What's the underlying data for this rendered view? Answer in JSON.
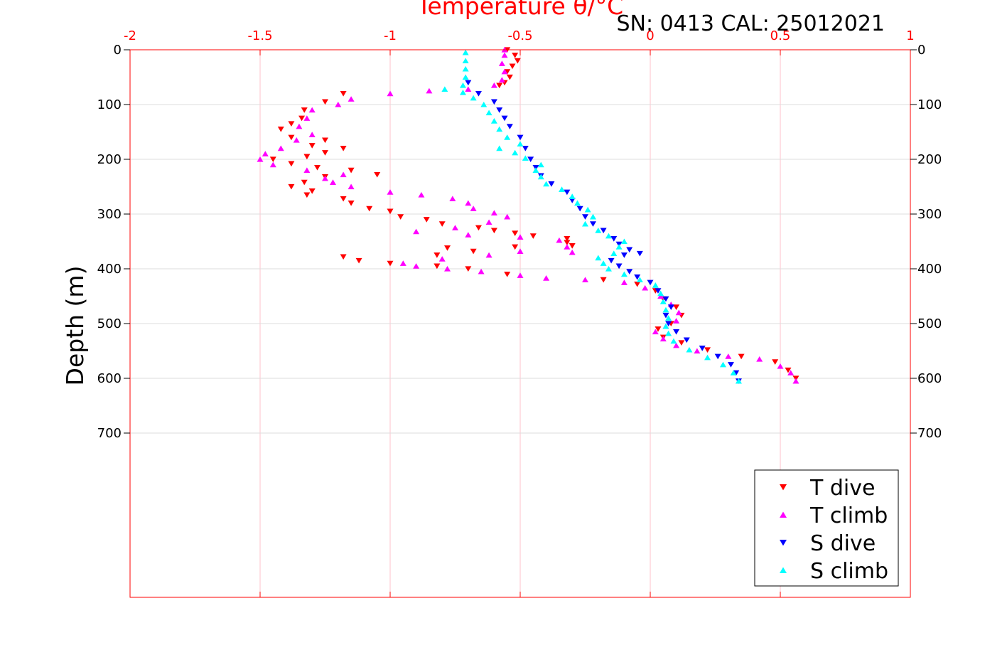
{
  "chart_data": {
    "type": "scatter",
    "title": "SN: 0413  CAL: 25012021",
    "xlabel": "Temperature θ/°C",
    "ylabel": "Depth (m)",
    "xlim": [
      -2,
      1
    ],
    "ylim": [
      0,
      1000
    ],
    "y_reversed": true,
    "xticks": [
      "-2",
      "-1.5",
      "-1",
      "-0.5",
      "0",
      "0.5",
      "1"
    ],
    "yticks": [
      "0",
      "100",
      "200",
      "300",
      "400",
      "500",
      "600",
      "700"
    ],
    "x_axis_position": "top",
    "y_axis_ticks_both_sides": true,
    "grid": true,
    "legend_position": "bottom-right",
    "colors": {
      "x_axis": "#ff0000",
      "grid_x": "#ffc0cb",
      "grid_y": "#dddddd"
    },
    "series": [
      {
        "name": "T dive",
        "marker": "triangle-down",
        "color": "#ff0000",
        "points": [
          [
            -0.55,
            0
          ],
          [
            -0.52,
            10
          ],
          [
            -0.51,
            20
          ],
          [
            -0.53,
            30
          ],
          [
            -0.55,
            40
          ],
          [
            -0.54,
            50
          ],
          [
            -0.56,
            60
          ],
          [
            -0.58,
            65
          ],
          [
            -1.18,
            80
          ],
          [
            -1.25,
            95
          ],
          [
            -1.33,
            110
          ],
          [
            -1.34,
            125
          ],
          [
            -1.38,
            135
          ],
          [
            -1.42,
            145
          ],
          [
            -1.38,
            160
          ],
          [
            -1.25,
            165
          ],
          [
            -1.3,
            175
          ],
          [
            -1.18,
            180
          ],
          [
            -1.25,
            188
          ],
          [
            -1.32,
            195
          ],
          [
            -1.45,
            200
          ],
          [
            -1.38,
            208
          ],
          [
            -1.28,
            215
          ],
          [
            -1.15,
            220
          ],
          [
            -1.05,
            228
          ],
          [
            -1.25,
            232
          ],
          [
            -1.33,
            242
          ],
          [
            -1.38,
            250
          ],
          [
            -1.3,
            258
          ],
          [
            -1.32,
            265
          ],
          [
            -1.18,
            272
          ],
          [
            -1.15,
            280
          ],
          [
            -1.08,
            290
          ],
          [
            -1.0,
            295
          ],
          [
            -0.96,
            305
          ],
          [
            -0.86,
            310
          ],
          [
            -0.8,
            318
          ],
          [
            -0.66,
            325
          ],
          [
            -0.6,
            330
          ],
          [
            -0.52,
            335
          ],
          [
            -0.45,
            340
          ],
          [
            -0.32,
            345
          ],
          [
            -0.32,
            352
          ],
          [
            -0.3,
            358
          ],
          [
            -0.52,
            360
          ],
          [
            -0.78,
            362
          ],
          [
            -0.68,
            368
          ],
          [
            -0.82,
            375
          ],
          [
            -1.18,
            378
          ],
          [
            -1.12,
            385
          ],
          [
            -1.0,
            390
          ],
          [
            -0.82,
            395
          ],
          [
            -0.7,
            400
          ],
          [
            -0.55,
            410
          ],
          [
            -0.18,
            420
          ],
          [
            -0.05,
            428
          ],
          [
            0.02,
            440
          ],
          [
            0.05,
            455
          ],
          [
            0.1,
            470
          ],
          [
            0.12,
            485
          ],
          [
            0.08,
            500
          ],
          [
            0.03,
            510
          ],
          [
            0.05,
            525
          ],
          [
            0.12,
            535
          ],
          [
            0.22,
            548
          ],
          [
            0.35,
            560
          ],
          [
            0.48,
            570
          ],
          [
            0.53,
            585
          ],
          [
            0.56,
            600
          ]
        ]
      },
      {
        "name": "T climb",
        "marker": "triangle-up",
        "color": "#ff00ff",
        "points": [
          [
            0.56,
            605
          ],
          [
            0.54,
            590
          ],
          [
            0.5,
            578
          ],
          [
            0.42,
            565
          ],
          [
            0.3,
            560
          ],
          [
            0.18,
            550
          ],
          [
            0.1,
            540
          ],
          [
            0.05,
            528
          ],
          [
            0.02,
            515
          ],
          [
            0.06,
            505
          ],
          [
            0.1,
            495
          ],
          [
            0.11,
            480
          ],
          [
            0.08,
            465
          ],
          [
            0.04,
            450
          ],
          [
            -0.02,
            435
          ],
          [
            -0.1,
            425
          ],
          [
            -0.25,
            420
          ],
          [
            -0.4,
            417
          ],
          [
            -0.5,
            412
          ],
          [
            -0.65,
            405
          ],
          [
            -0.78,
            400
          ],
          [
            -0.9,
            395
          ],
          [
            -0.95,
            390
          ],
          [
            -0.8,
            382
          ],
          [
            -0.62,
            375
          ],
          [
            -0.5,
            368
          ],
          [
            -0.3,
            370
          ],
          [
            -0.32,
            360
          ],
          [
            -0.35,
            348
          ],
          [
            -0.5,
            342
          ],
          [
            -0.7,
            338
          ],
          [
            -0.9,
            332
          ],
          [
            -0.75,
            325
          ],
          [
            -0.62,
            315
          ],
          [
            -0.55,
            305
          ],
          [
            -0.6,
            298
          ],
          [
            -0.68,
            290
          ],
          [
            -0.7,
            280
          ],
          [
            -0.76,
            272
          ],
          [
            -0.88,
            265
          ],
          [
            -1.0,
            260
          ],
          [
            -1.15,
            250
          ],
          [
            -1.22,
            242
          ],
          [
            -1.25,
            235
          ],
          [
            -1.18,
            228
          ],
          [
            -1.32,
            220
          ],
          [
            -1.45,
            210
          ],
          [
            -1.5,
            200
          ],
          [
            -1.48,
            190
          ],
          [
            -1.42,
            180
          ],
          [
            -1.36,
            165
          ],
          [
            -1.3,
            155
          ],
          [
            -1.35,
            140
          ],
          [
            -1.32,
            125
          ],
          [
            -1.3,
            110
          ],
          [
            -1.2,
            100
          ],
          [
            -1.15,
            90
          ],
          [
            -1.0,
            80
          ],
          [
            -0.85,
            75
          ],
          [
            -0.7,
            72
          ],
          [
            -0.6,
            65
          ],
          [
            -0.57,
            55
          ],
          [
            -0.56,
            40
          ],
          [
            -0.57,
            25
          ],
          [
            -0.56,
            10
          ],
          [
            -0.56,
            0
          ]
        ]
      },
      {
        "name": "S dive",
        "marker": "triangle-down",
        "color": "#0000ff",
        "points": [
          [
            -0.7,
            60
          ],
          [
            -0.66,
            80
          ],
          [
            -0.6,
            95
          ],
          [
            -0.58,
            110
          ],
          [
            -0.56,
            125
          ],
          [
            -0.54,
            140
          ],
          [
            -0.5,
            160
          ],
          [
            -0.48,
            180
          ],
          [
            -0.46,
            200
          ],
          [
            -0.44,
            215
          ],
          [
            -0.42,
            230
          ],
          [
            -0.38,
            245
          ],
          [
            -0.32,
            260
          ],
          [
            -0.3,
            275
          ],
          [
            -0.27,
            290
          ],
          [
            -0.25,
            305
          ],
          [
            -0.22,
            318
          ],
          [
            -0.18,
            330
          ],
          [
            -0.14,
            345
          ],
          [
            -0.12,
            355
          ],
          [
            -0.08,
            365
          ],
          [
            -0.04,
            372
          ],
          [
            -0.1,
            375
          ],
          [
            -0.15,
            385
          ],
          [
            -0.12,
            395
          ],
          [
            -0.08,
            405
          ],
          [
            -0.05,
            415
          ],
          [
            0.0,
            425
          ],
          [
            0.03,
            440
          ],
          [
            0.06,
            455
          ],
          [
            0.08,
            470
          ],
          [
            0.06,
            485
          ],
          [
            0.07,
            500
          ],
          [
            0.1,
            515
          ],
          [
            0.14,
            530
          ],
          [
            0.2,
            545
          ],
          [
            0.26,
            560
          ],
          [
            0.31,
            575
          ],
          [
            0.33,
            590
          ],
          [
            0.34,
            605
          ]
        ]
      },
      {
        "name": "S climb",
        "marker": "triangle-up",
        "color": "#00ffff",
        "points": [
          [
            0.34,
            605
          ],
          [
            0.32,
            590
          ],
          [
            0.28,
            575
          ],
          [
            0.22,
            562
          ],
          [
            0.15,
            548
          ],
          [
            0.09,
            532
          ],
          [
            0.07,
            518
          ],
          [
            0.06,
            505
          ],
          [
            0.07,
            490
          ],
          [
            0.06,
            475
          ],
          [
            0.05,
            460
          ],
          [
            0.04,
            445
          ],
          [
            0.02,
            430
          ],
          [
            -0.04,
            420
          ],
          [
            -0.1,
            410
          ],
          [
            -0.16,
            400
          ],
          [
            -0.18,
            390
          ],
          [
            -0.2,
            380
          ],
          [
            -0.14,
            372
          ],
          [
            -0.12,
            360
          ],
          [
            -0.1,
            350
          ],
          [
            -0.16,
            340
          ],
          [
            -0.2,
            330
          ],
          [
            -0.25,
            318
          ],
          [
            -0.22,
            305
          ],
          [
            -0.24,
            292
          ],
          [
            -0.28,
            280
          ],
          [
            -0.3,
            268
          ],
          [
            -0.34,
            255
          ],
          [
            -0.4,
            245
          ],
          [
            -0.42,
            232
          ],
          [
            -0.44,
            220
          ],
          [
            -0.42,
            210
          ],
          [
            -0.48,
            198
          ],
          [
            -0.52,
            188
          ],
          [
            -0.58,
            180
          ],
          [
            -0.5,
            172
          ],
          [
            -0.55,
            160
          ],
          [
            -0.58,
            145
          ],
          [
            -0.6,
            130
          ],
          [
            -0.62,
            115
          ],
          [
            -0.64,
            100
          ],
          [
            -0.68,
            88
          ],
          [
            -0.72,
            78
          ],
          [
            -0.79,
            72
          ],
          [
            -0.72,
            65
          ],
          [
            -0.71,
            50
          ],
          [
            -0.71,
            35
          ],
          [
            -0.71,
            20
          ],
          [
            -0.71,
            5
          ]
        ]
      }
    ]
  }
}
